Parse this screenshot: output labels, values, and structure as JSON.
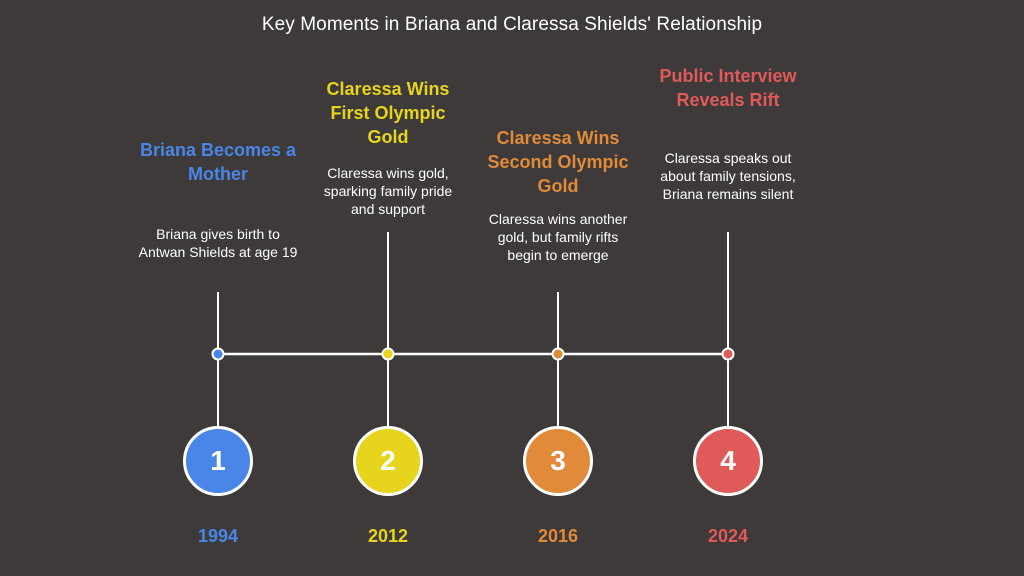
{
  "title": "Key Moments in Briana and Claressa Shields' Relationship",
  "line_color": "#ffffff",
  "events": [
    {
      "number": "1",
      "year": "1994",
      "heading": "Briana Becomes a Mother",
      "description": "Briana gives birth to Antwan Shields at age 19",
      "color": "#4a86e8"
    },
    {
      "number": "2",
      "year": "2012",
      "heading": "Claressa Wins First Olympic Gold",
      "description": "Claressa wins gold, sparking family pride and support",
      "color": "#e6d51c"
    },
    {
      "number": "3",
      "year": "2016",
      "heading": "Claressa Wins Second Olympic Gold",
      "description": "Claressa wins another gold, but family rifts begin to emerge",
      "color": "#e08a3a"
    },
    {
      "number": "4",
      "year": "2024",
      "heading": "Public Interview Reveals Rift",
      "description": "Claressa speaks out about family tensions, Briana remains silent",
      "color": "#e05a5a"
    }
  ]
}
